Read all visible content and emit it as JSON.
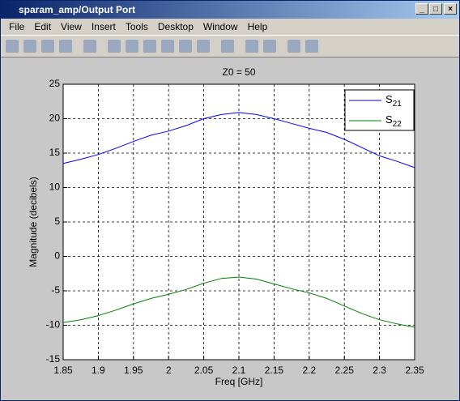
{
  "window": {
    "title": "sparam_amp/Output Port"
  },
  "menu": [
    "File",
    "Edit",
    "View",
    "Insert",
    "Tools",
    "Desktop",
    "Window",
    "Help"
  ],
  "chart_data": {
    "type": "line",
    "title": "Z0 = 50",
    "xlabel": "Freq [GHz]",
    "ylabel": "Magnitude (decibels)",
    "x": [
      1.85,
      1.875,
      1.9,
      1.925,
      1.95,
      1.975,
      2.0,
      2.025,
      2.05,
      2.075,
      2.1,
      2.125,
      2.15,
      2.175,
      2.2,
      2.225,
      2.25,
      2.275,
      2.3,
      2.325,
      2.35
    ],
    "series": [
      {
        "name": "S21",
        "color": "#0000ff",
        "values": [
          13.5,
          14.1,
          14.8,
          15.7,
          16.7,
          17.6,
          18.2,
          19.0,
          20.0,
          20.6,
          20.9,
          20.6,
          20.0,
          19.3,
          18.6,
          18.0,
          17.0,
          15.8,
          14.6,
          13.8,
          12.9
        ]
      },
      {
        "name": "S22",
        "color": "#008000",
        "values": [
          -9.6,
          -9.2,
          -8.6,
          -7.8,
          -6.9,
          -6.1,
          -5.5,
          -4.8,
          -3.9,
          -3.2,
          -3.0,
          -3.3,
          -4.0,
          -4.7,
          -5.3,
          -6.1,
          -7.2,
          -8.3,
          -9.2,
          -9.8,
          -10.3
        ]
      }
    ],
    "xlim": [
      1.85,
      2.35
    ],
    "xticks": [
      1.85,
      1.9,
      1.95,
      2,
      2.05,
      2.1,
      2.15,
      2.2,
      2.25,
      2.3,
      2.35
    ],
    "ylim": [
      -15,
      25
    ],
    "yticks": [
      -15,
      -10,
      -5,
      0,
      5,
      10,
      15,
      20,
      25
    ],
    "grid": true,
    "legend": "northeast"
  }
}
